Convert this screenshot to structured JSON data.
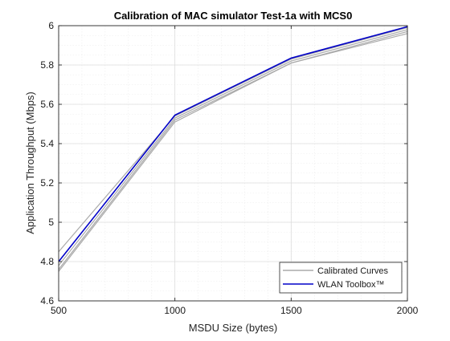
{
  "colors": {
    "calibrated": "#aaaaaa",
    "toolbox": "#0000c8",
    "grid_major": "#dcdcdc",
    "grid_minor": "#ececec",
    "axes": "#262626",
    "text": "#1a1a1a"
  },
  "chart_data": {
    "type": "line",
    "title": "Calibration of MAC simulator Test-1a with MCS0",
    "xlabel": "MSDU Size (bytes)",
    "ylabel": "Application Throughput (Mbps)",
    "xlim": [
      500,
      2000
    ],
    "ylim": [
      4.6,
      6.0
    ],
    "grid": "major and minor",
    "x": [
      500,
      1000,
      1500,
      2000
    ],
    "xticks": [
      500,
      1000,
      1500,
      2000
    ],
    "xtick_labels": [
      "500",
      "1000",
      "1500",
      "2000"
    ],
    "yticks": [
      4.6,
      4.8,
      5.0,
      5.2,
      5.4,
      5.6,
      5.8,
      6.0
    ],
    "ytick_labels": [
      "4.6",
      "4.8",
      "5",
      "5.2",
      "5.4",
      "5.6",
      "5.8",
      "6"
    ],
    "legend_position": "bottom-right",
    "legend": [
      {
        "label": "Calibrated Curves",
        "color_key": "calibrated"
      },
      {
        "label": "WLAN Toolbox™",
        "color_key": "toolbox"
      }
    ],
    "series": [
      {
        "group": "calibrated",
        "values": [
          4.85,
          5.54,
          5.83,
          5.99
        ]
      },
      {
        "group": "calibrated",
        "values": [
          4.78,
          5.53,
          5.82,
          5.98
        ]
      },
      {
        "group": "calibrated",
        "values": [
          4.76,
          5.52,
          5.81,
          5.97
        ]
      },
      {
        "group": "calibrated",
        "values": [
          4.75,
          5.51,
          5.81,
          5.96
        ]
      },
      {
        "group": "toolbox",
        "values": [
          4.8,
          5.545,
          5.835,
          5.995
        ]
      }
    ]
  }
}
